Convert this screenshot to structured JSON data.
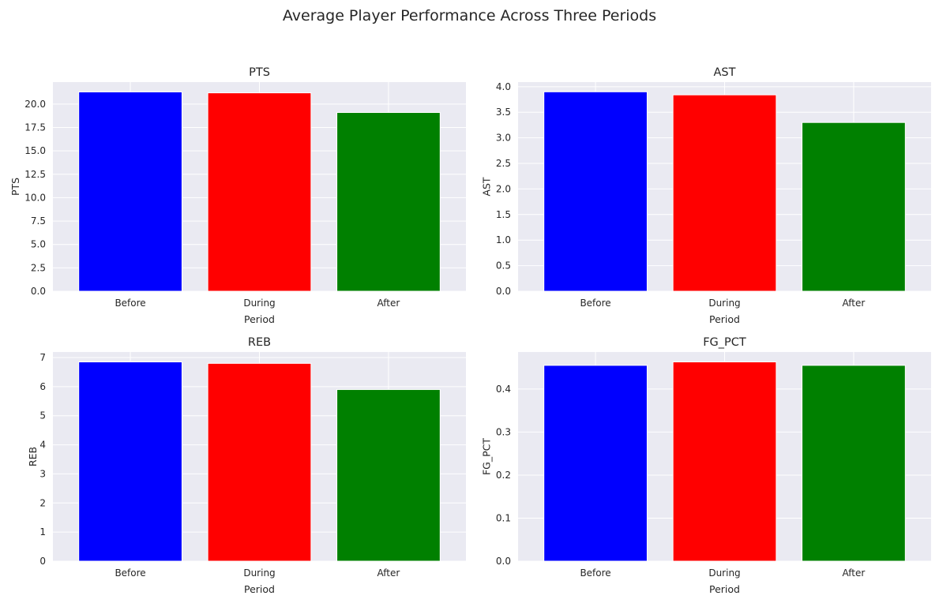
{
  "figure": {
    "title": "Average Player Performance Across Three Periods",
    "background": "#ffffff",
    "axes_background": "#eaeaf2",
    "grid_color": "#ffffff",
    "text_color": "#262626"
  },
  "chart_data": [
    {
      "type": "bar",
      "title": "PTS",
      "xlabel": "Period",
      "ylabel": "PTS",
      "categories": [
        "Before",
        "During",
        "After"
      ],
      "values": [
        21.3,
        21.2,
        19.1
      ],
      "colors": [
        "#0000ff",
        "#ff0000",
        "#008000"
      ],
      "ylim": [
        0,
        22.35
      ],
      "yticks": [
        0,
        2.5,
        5,
        7.5,
        10,
        12.5,
        15,
        17.5,
        20
      ],
      "ytick_labels": [
        "0.0",
        "2.5",
        "5.0",
        "7.5",
        "10.0",
        "12.5",
        "15.0",
        "17.5",
        "20.0"
      ],
      "grid": true
    },
    {
      "type": "bar",
      "title": "AST",
      "xlabel": "Period",
      "ylabel": "AST",
      "categories": [
        "Before",
        "During",
        "After"
      ],
      "values": [
        3.9,
        3.84,
        3.3
      ],
      "colors": [
        "#0000ff",
        "#ff0000",
        "#008000"
      ],
      "ylim": [
        0,
        4.09
      ],
      "yticks": [
        0,
        0.5,
        1,
        1.5,
        2,
        2.5,
        3,
        3.5,
        4
      ],
      "ytick_labels": [
        "0.0",
        "0.5",
        "1.0",
        "1.5",
        "2.0",
        "2.5",
        "3.0",
        "3.5",
        "4.0"
      ],
      "grid": true
    },
    {
      "type": "bar",
      "title": "REB",
      "xlabel": "Period",
      "ylabel": "REB",
      "categories": [
        "Before",
        "During",
        "After"
      ],
      "values": [
        6.85,
        6.8,
        5.9
      ],
      "colors": [
        "#0000ff",
        "#ff0000",
        "#008000"
      ],
      "ylim": [
        0,
        7.19
      ],
      "yticks": [
        0,
        1,
        2,
        3,
        4,
        5,
        6,
        7
      ],
      "ytick_labels": [
        "0",
        "1",
        "2",
        "3",
        "4",
        "5",
        "6",
        "7"
      ],
      "grid": true
    },
    {
      "type": "bar",
      "title": "FG_PCT",
      "xlabel": "Period",
      "ylabel": "FG_PCT",
      "categories": [
        "Before",
        "During",
        "After"
      ],
      "values": [
        0.455,
        0.463,
        0.455
      ],
      "colors": [
        "#0000ff",
        "#ff0000",
        "#008000"
      ],
      "ylim": [
        0,
        0.486
      ],
      "yticks": [
        0,
        0.1,
        0.2,
        0.3,
        0.4
      ],
      "ytick_labels": [
        "0.0",
        "0.1",
        "0.2",
        "0.3",
        "0.4"
      ],
      "grid": true
    }
  ]
}
